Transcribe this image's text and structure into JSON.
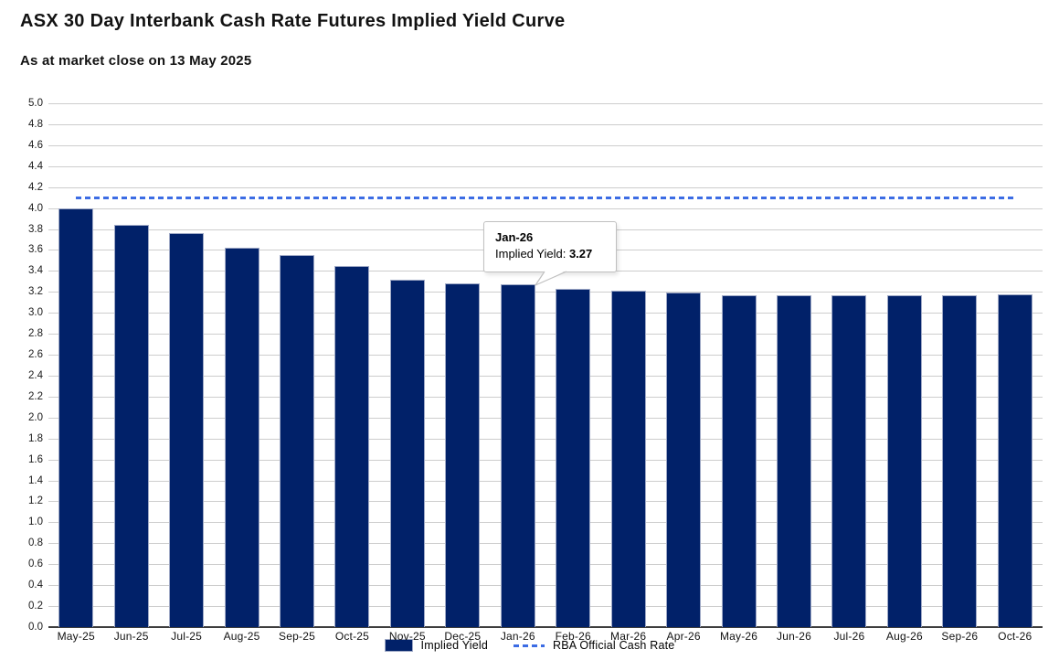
{
  "chart_data": {
    "type": "bar",
    "title": "ASX 30 Day Interbank Cash Rate Futures Implied Yield Curve",
    "subtitle": "As at market close on 13 May 2025",
    "categories": [
      "May-25",
      "Jun-25",
      "Jul-25",
      "Aug-25",
      "Sep-25",
      "Oct-25",
      "Nov-25",
      "Dec-25",
      "Jan-26",
      "Feb-26",
      "Mar-26",
      "Apr-26",
      "May-26",
      "Jun-26",
      "Jul-26",
      "Aug-26",
      "Sep-26",
      "Oct-26"
    ],
    "series": [
      {
        "name": "Implied Yield",
        "type": "bar",
        "values": [
          4.0,
          3.84,
          3.76,
          3.62,
          3.55,
          3.45,
          3.32,
          3.28,
          3.27,
          3.23,
          3.21,
          3.19,
          3.17,
          3.17,
          3.17,
          3.17,
          3.17,
          3.18
        ]
      },
      {
        "name": "RBA Official Cash Rate",
        "type": "line",
        "line_style": "dashed",
        "value": 4.1
      }
    ],
    "xlabel": "",
    "ylabel": "",
    "ylim": [
      0.0,
      5.0
    ],
    "ytick_step": 0.2,
    "grid": true,
    "legend_position": "bottom-center",
    "tooltip": {
      "category": "Jan-26",
      "series_label": "Implied Yield:",
      "value": "3.27",
      "category_index": 8
    }
  },
  "colors": {
    "bar_fill": "#012169",
    "bar_border": "#9fa9c6",
    "rba_line": "#3c6ce4",
    "gridline": "#cdcdcd",
    "axis_line": "#3d3d3d",
    "tooltip_border": "#c0c0c0",
    "text": "#111111"
  }
}
